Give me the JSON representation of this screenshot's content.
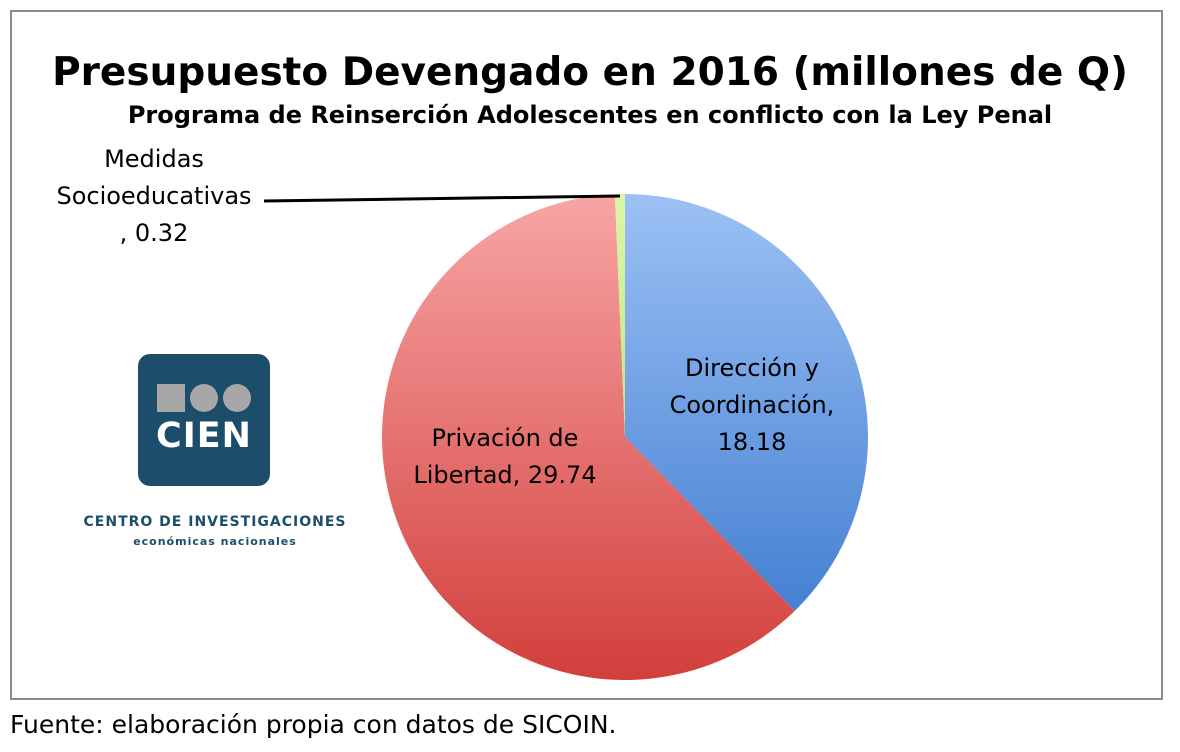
{
  "chart_data": {
    "type": "pie",
    "title": "Presupuesto Devengado en 2016 (millones de Q)",
    "subtitle": "Programa de Reinserción Adolescentes en conflicto con la Ley Penal",
    "unit": "millones de Q",
    "slices": [
      {
        "name": "Dirección y Coordinación",
        "value": 18.18,
        "label_lines": [
          "Dirección y",
          "Coordinación,",
          "18.18"
        ],
        "color_top": "#9cc1f5",
        "color_bottom": "#4580d2"
      },
      {
        "name": "Privación de Libertad",
        "value": 29.74,
        "label_lines": [
          "Privación de",
          "Libertad, 29.74"
        ],
        "color_top": "#f7a5a5",
        "color_bottom": "#d23f3b"
      },
      {
        "name": "Medidas Socioeducativas",
        "value": 0.32,
        "label_lines": [
          "Medidas",
          "Socioeducativas",
          ", 0.32"
        ],
        "color_top": "#dbf6a7",
        "color_bottom": "#bfe886"
      }
    ],
    "start_angle_deg": 0,
    "direction": "clockwise",
    "legend": "none"
  },
  "logo": {
    "brand_text": "CIEN",
    "org_name": "CENTRO DE INVESTIGACIONES",
    "tagline": "económicas nacionales",
    "color": "#1c4d6b"
  },
  "source_note": "Fuente: elaboración propia con datos de SICOIN."
}
